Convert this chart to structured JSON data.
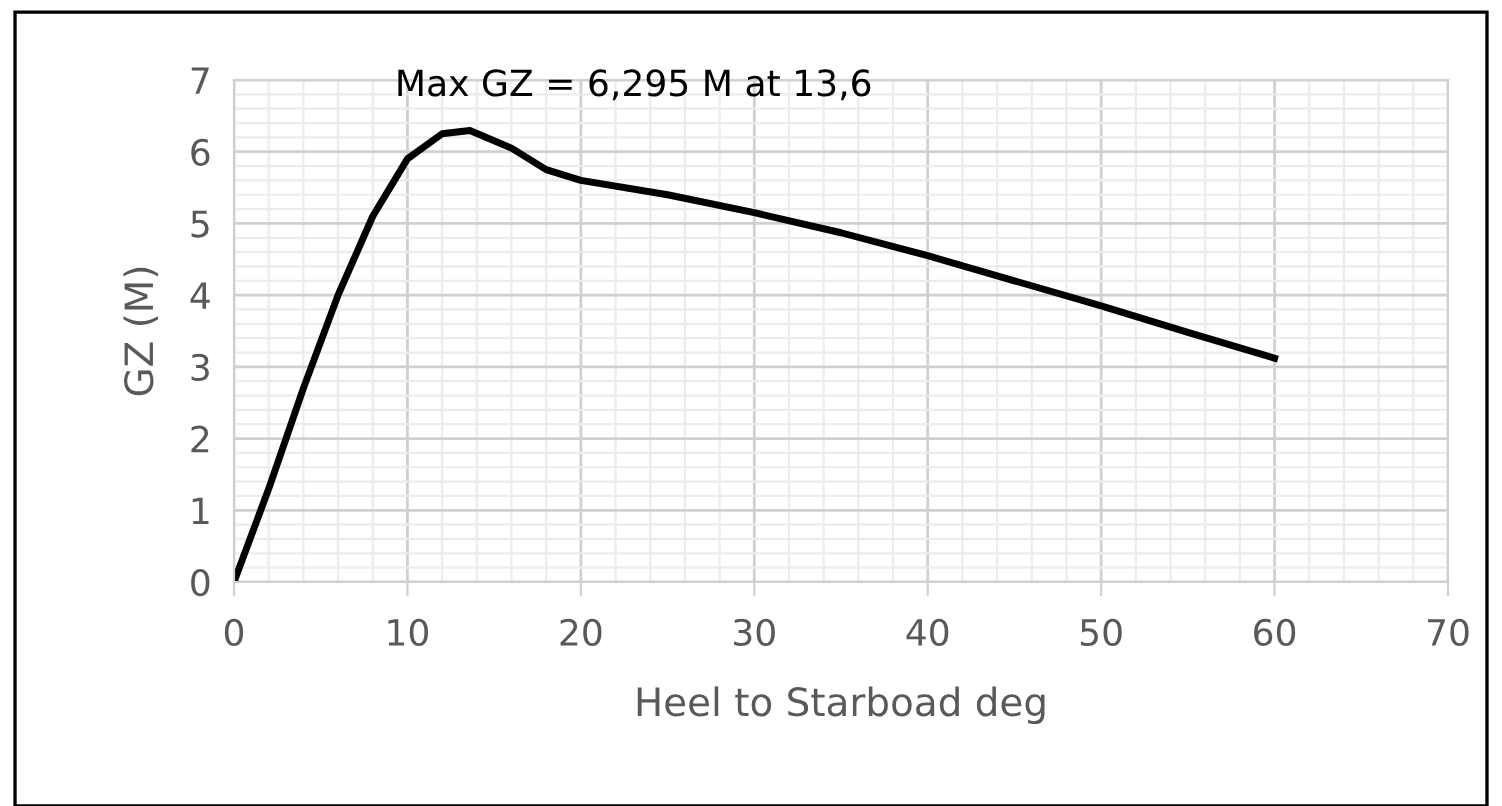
{
  "chart_data": {
    "type": "line",
    "xlabel": "Heel to Starboad deg",
    "ylabel": "GZ (M)",
    "series": [
      {
        "color": "#000000",
        "x": [
          0,
          2,
          4,
          6,
          8,
          10,
          12,
          13.6,
          16,
          18,
          20,
          25,
          30,
          35,
          40,
          45,
          50,
          55,
          60
        ],
        "values": [
          0,
          1.3,
          2.7,
          4.0,
          5.1,
          5.9,
          6.25,
          6.295,
          6.05,
          5.75,
          5.6,
          5.4,
          5.15,
          4.87,
          4.55,
          4.2,
          3.85,
          3.48,
          3.12
        ]
      }
    ],
    "xlim": [
      0,
      70
    ],
    "xticks": [
      0,
      10,
      20,
      30,
      40,
      50,
      60,
      70
    ],
    "ylim": [
      0,
      7
    ],
    "yticks": [
      0,
      1,
      2,
      3,
      4,
      5,
      6,
      7
    ],
    "grid": true,
    "marker": "none",
    "line_style": "solid",
    "annotations": [
      {
        "text": "Max GZ = 6,295 M at 13,6",
        "x": 13.6,
        "y": 6.295
      }
    ]
  }
}
